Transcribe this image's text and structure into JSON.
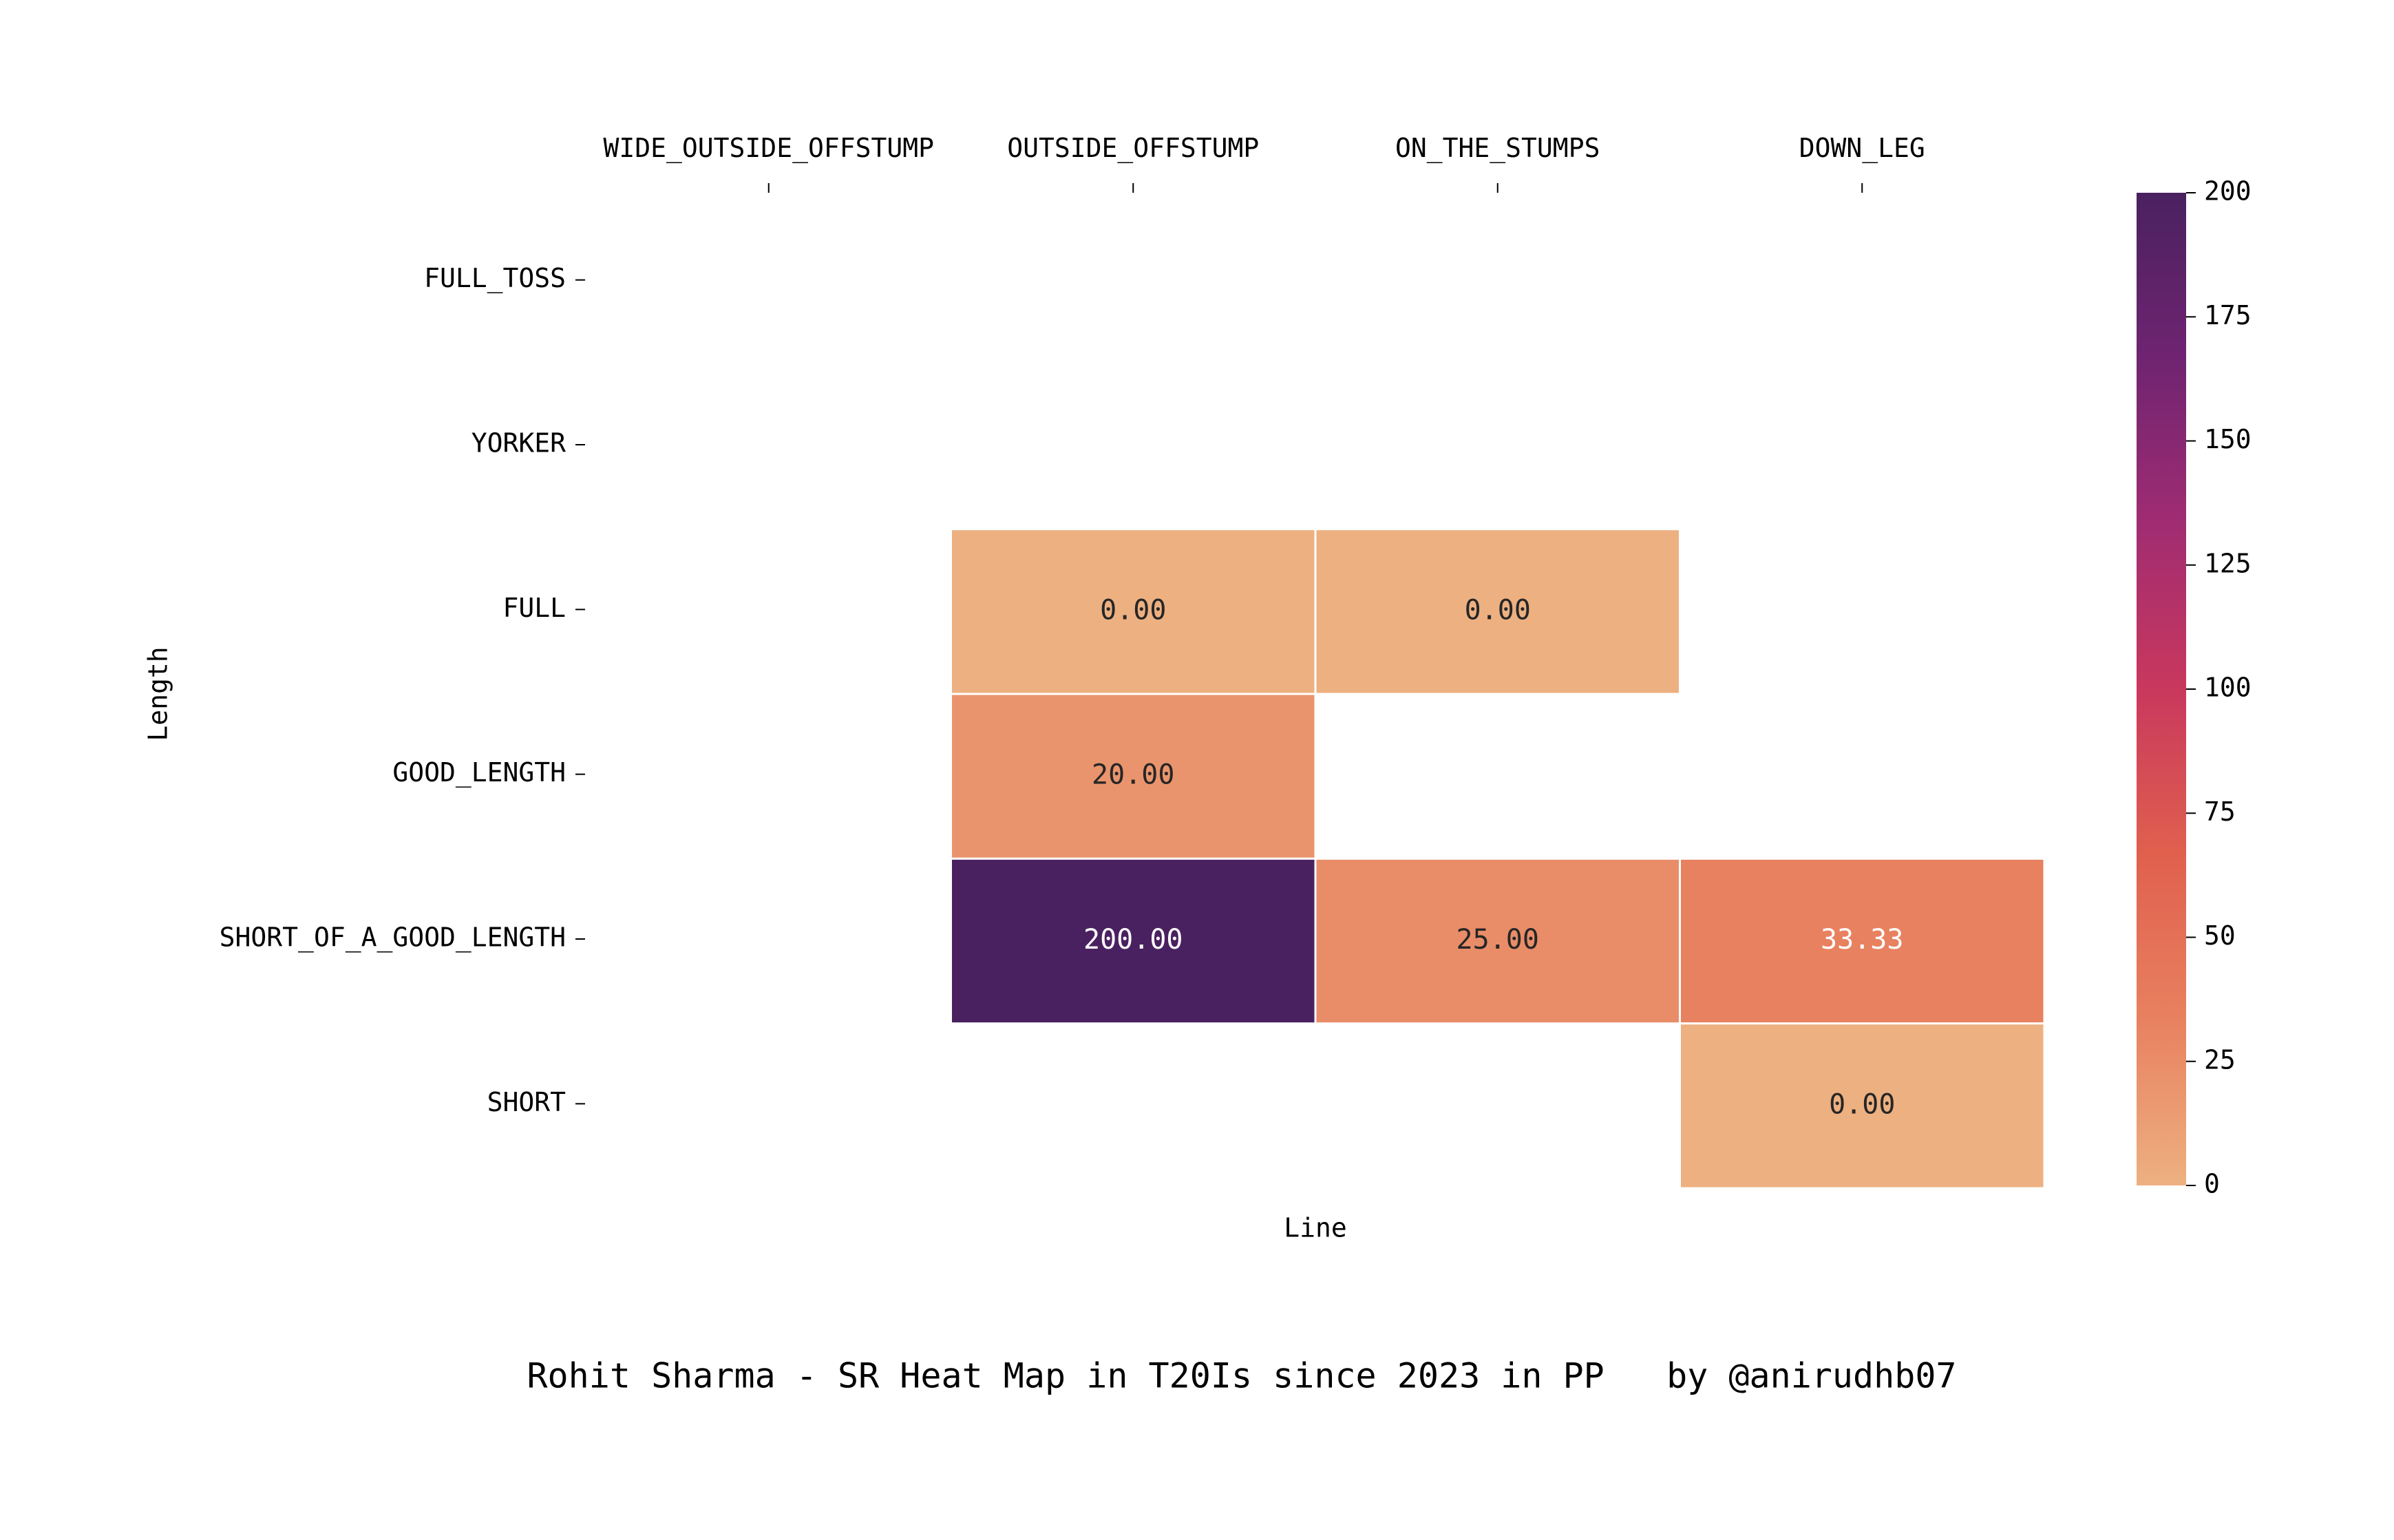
{
  "chart_data": {
    "type": "heatmap",
    "title": "Rohit Sharma - SR Heat Map in T20Is since 2023 in PP   by @anirudhb07",
    "xlabel": "Line",
    "ylabel": "Length",
    "x_categories": [
      "WIDE_OUTSIDE_OFFSTUMP",
      "OUTSIDE_OFFSTUMP",
      "ON_THE_STUMPS",
      "DOWN_LEG"
    ],
    "y_categories": [
      "FULL_TOSS",
      "YORKER",
      "FULL",
      "GOOD_LENGTH",
      "SHORT_OF_A_GOOD_LENGTH",
      "SHORT"
    ],
    "values": [
      [
        null,
        null,
        null,
        null
      ],
      [
        null,
        null,
        null,
        null
      ],
      [
        null,
        0.0,
        0.0,
        null
      ],
      [
        null,
        20.0,
        null,
        null
      ],
      [
        null,
        200.0,
        25.0,
        33.33
      ],
      [
        null,
        null,
        null,
        0.0
      ]
    ],
    "value_format": "2 decimals",
    "colorbar": {
      "min": 0,
      "max": 200,
      "ticks": [
        0,
        25,
        50,
        75,
        100,
        125,
        150,
        175,
        200
      ],
      "colormap": "flare",
      "colors": [
        "#edb081",
        "#e8815f",
        "#e0604e",
        "#c9385d",
        "#a02c72",
        "#6f2471",
        "#4a2160"
      ]
    },
    "x_axis_position": "top",
    "grid": false,
    "legend": "colorbar-right"
  }
}
